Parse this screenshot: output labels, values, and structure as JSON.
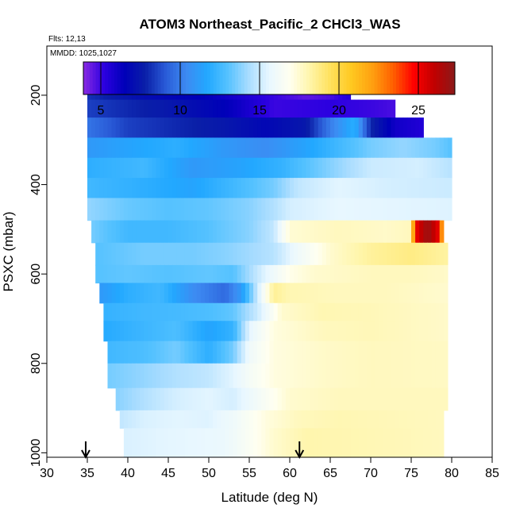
{
  "chart_data": {
    "type": "heatmap",
    "title": "ATOM3 Northeast_Pacific_2 CHCl3_WAS",
    "flights_label": "Flts: 12,13",
    "dates_label": "MMDD: 1025,1027",
    "xlabel": "Latitude (deg N)",
    "ylabel": "PSXC (mbar)",
    "xlim": [
      30,
      85
    ],
    "ylim": [
      1010,
      90
    ],
    "x_ticks": [
      "30",
      "35",
      "40",
      "45",
      "50",
      "55",
      "60",
      "65",
      "70",
      "75",
      "80",
      "85"
    ],
    "y_ticks": [
      "200",
      "400",
      "600",
      "800",
      "1000"
    ],
    "colorbar": {
      "range": [
        3.9,
        27.3
      ],
      "ticks": [
        "5",
        "10",
        "15",
        "20",
        "25"
      ],
      "colors": [
        "#8a2be2",
        "#2b00e0",
        "#0000b8",
        "#0a1fa8",
        "#2a5cd8",
        "#3d8bf2",
        "#22a8ff",
        "#55c2ff",
        "#a8dcff",
        "#e8f7ff",
        "#fffff0",
        "#fff5a8",
        "#ffe05a",
        "#ffc820",
        "#ffa010",
        "#ff6000",
        "#ff0000",
        "#c00000",
        "#8b1a1a"
      ]
    },
    "profile_arrows_lat": [
      34.8,
      61.2
    ],
    "grid": false,
    "bands": [
      {
        "p_top": 180,
        "p_bot": 210,
        "lat_min": 35,
        "lat_max": 67.5,
        "stops": [
          [
            35,
            8.2
          ],
          [
            42,
            7
          ],
          [
            50,
            6.4
          ],
          [
            57,
            5.2
          ],
          [
            62,
            4.5
          ],
          [
            65,
            4.8
          ],
          [
            67.5,
            5.5
          ]
        ]
      },
      {
        "p_top": 210,
        "p_bot": 250,
        "lat_min": 35,
        "lat_max": 73,
        "stops": [
          [
            35,
            8.5
          ],
          [
            45,
            7.5
          ],
          [
            52,
            6.5
          ],
          [
            58,
            5
          ],
          [
            65,
            5.2
          ],
          [
            70,
            5
          ],
          [
            73,
            4.8
          ]
        ]
      },
      {
        "p_top": 250,
        "p_bot": 295,
        "lat_min": 35,
        "lat_max": 76.5,
        "stops": [
          [
            35,
            9.8
          ],
          [
            40,
            8.5
          ],
          [
            46,
            8
          ],
          [
            52,
            7.5
          ],
          [
            57,
            6.8
          ],
          [
            62,
            7.5
          ],
          [
            65,
            10
          ],
          [
            68,
            12
          ],
          [
            70,
            8
          ],
          [
            73,
            6
          ],
          [
            76.5,
            5.5
          ]
        ]
      },
      {
        "p_top": 295,
        "p_bot": 340,
        "lat_min": 35,
        "lat_max": 80,
        "stops": [
          [
            35,
            11
          ],
          [
            40,
            11.5
          ],
          [
            46,
            12
          ],
          [
            52,
            11
          ],
          [
            57,
            10.5
          ],
          [
            62,
            11.5
          ],
          [
            66,
            12.5
          ],
          [
            70,
            13.5
          ],
          [
            74,
            14
          ],
          [
            78,
            13.5
          ],
          [
            80,
            13
          ]
        ]
      },
      {
        "p_top": 340,
        "p_bot": 385,
        "lat_min": 35,
        "lat_max": 80,
        "stops": [
          [
            35,
            12
          ],
          [
            42,
            12.5
          ],
          [
            48,
            11
          ],
          [
            54,
            11.5
          ],
          [
            59,
            12.2
          ],
          [
            62,
            13
          ],
          [
            66,
            14
          ],
          [
            70,
            15
          ],
          [
            76,
            15.2
          ],
          [
            80,
            14.6
          ]
        ]
      },
      {
        "p_top": 385,
        "p_bot": 430,
        "lat_min": 35,
        "lat_max": 80,
        "stops": [
          [
            35,
            12.5
          ],
          [
            42,
            12
          ],
          [
            48,
            11.5
          ],
          [
            53,
            12.5
          ],
          [
            58,
            13.5
          ],
          [
            61,
            14.8
          ],
          [
            66,
            15.5
          ],
          [
            72,
            15.2
          ],
          [
            80,
            15
          ]
        ]
      },
      {
        "p_top": 430,
        "p_bot": 480,
        "lat_min": 35,
        "lat_max": 80,
        "stops": [
          [
            35,
            14
          ],
          [
            40,
            13.3
          ],
          [
            45,
            13
          ],
          [
            50,
            13.2
          ],
          [
            55,
            13.8
          ],
          [
            58,
            14.5
          ],
          [
            60,
            15.2
          ],
          [
            66,
            15.6
          ],
          [
            74,
            15.5
          ],
          [
            80,
            15.4
          ]
        ]
      },
      {
        "p_top": 480,
        "p_bot": 530,
        "lat_min": 35.5,
        "lat_max": 79,
        "stops": [
          [
            35.5,
            13.5
          ],
          [
            40,
            12.5
          ],
          [
            45,
            12.5
          ],
          [
            50,
            13
          ],
          [
            55,
            13.8
          ],
          [
            58,
            14.8
          ],
          [
            60,
            17.4
          ],
          [
            66,
            17.8
          ],
          [
            72,
            17.6
          ],
          [
            74.8,
            17.8
          ],
          [
            75.6,
            25
          ],
          [
            77,
            27
          ],
          [
            78.5,
            25
          ],
          [
            79,
            20
          ]
        ]
      },
      {
        "p_top": 530,
        "p_bot": 580,
        "lat_min": 36,
        "lat_max": 79.5,
        "stops": [
          [
            36,
            13
          ],
          [
            42,
            13.5
          ],
          [
            48,
            13.5
          ],
          [
            52,
            13.8
          ],
          [
            55,
            14.2
          ],
          [
            58,
            14.6
          ],
          [
            61,
            16
          ],
          [
            65,
            17.5
          ],
          [
            70,
            18.4
          ],
          [
            75,
            18.8
          ],
          [
            79.5,
            18.3
          ]
        ]
      },
      {
        "p_top": 580,
        "p_bot": 620,
        "lat_min": 36,
        "lat_max": 79.5,
        "stops": [
          [
            36,
            13
          ],
          [
            40,
            13.2
          ],
          [
            45,
            13
          ],
          [
            50,
            13.2
          ],
          [
            53,
            13
          ],
          [
            57,
            15.5
          ],
          [
            60,
            17
          ],
          [
            63,
            17.5
          ],
          [
            70,
            17.8
          ],
          [
            75,
            17.8
          ],
          [
            79.5,
            17.6
          ]
        ]
      },
      {
        "p_top": 620,
        "p_bot": 665,
        "lat_min": 36.5,
        "lat_max": 79.5,
        "stops": [
          [
            36.5,
            11
          ],
          [
            40,
            12
          ],
          [
            44,
            12.5
          ],
          [
            48,
            10.5
          ],
          [
            52,
            9.5
          ],
          [
            54,
            11
          ],
          [
            56,
            15
          ],
          [
            58,
            18.5
          ],
          [
            60,
            18
          ],
          [
            66,
            17.8
          ],
          [
            72,
            17.8
          ],
          [
            79.5,
            17.5
          ]
        ]
      },
      {
        "p_top": 665,
        "p_bot": 705,
        "lat_min": 37,
        "lat_max": 79.5,
        "stops": [
          [
            37,
            12.2
          ],
          [
            42,
            12.5
          ],
          [
            46,
            12.6
          ],
          [
            50,
            12.8
          ],
          [
            53,
            13.2
          ],
          [
            56,
            15
          ],
          [
            59,
            17.5
          ],
          [
            64,
            18
          ],
          [
            70,
            17.9
          ],
          [
            79.5,
            17.6
          ]
        ]
      },
      {
        "p_top": 705,
        "p_bot": 750,
        "lat_min": 37,
        "lat_max": 79.5,
        "stops": [
          [
            37,
            11.8
          ],
          [
            42,
            12.4
          ],
          [
            46,
            12.8
          ],
          [
            50,
            11.5
          ],
          [
            53,
            12.2
          ],
          [
            55,
            15.5
          ],
          [
            58,
            17.2
          ],
          [
            64,
            17.8
          ],
          [
            70,
            17.9
          ],
          [
            79.5,
            17.6
          ]
        ]
      },
      {
        "p_top": 750,
        "p_bot": 800,
        "lat_min": 37.5,
        "lat_max": 79.5,
        "stops": [
          [
            37.5,
            12.5
          ],
          [
            42,
            12.8
          ],
          [
            46,
            13.5
          ],
          [
            50,
            12
          ],
          [
            53,
            13.5
          ],
          [
            55,
            16
          ],
          [
            58,
            17.2
          ],
          [
            64,
            17.6
          ],
          [
            70,
            17.8
          ],
          [
            79.5,
            17.7
          ]
        ]
      },
      {
        "p_top": 800,
        "p_bot": 855,
        "lat_min": 37.5,
        "lat_max": 79.5,
        "stops": [
          [
            37.5,
            13.5
          ],
          [
            42,
            14
          ],
          [
            46,
            14.5
          ],
          [
            50,
            14.8
          ],
          [
            53,
            15.5
          ],
          [
            55,
            16.3
          ],
          [
            58,
            17.2
          ],
          [
            64,
            17.6
          ],
          [
            70,
            17.8
          ],
          [
            79.5,
            17.7
          ]
        ]
      },
      {
        "p_top": 855,
        "p_bot": 905,
        "lat_min": 38.5,
        "lat_max": 79.5,
        "stops": [
          [
            38.5,
            13.8
          ],
          [
            42,
            14.5
          ],
          [
            46,
            15.2
          ],
          [
            50,
            15.5
          ],
          [
            53,
            15.2
          ],
          [
            56,
            16.2
          ],
          [
            60,
            17.5
          ],
          [
            66,
            17.8
          ],
          [
            72,
            17.8
          ],
          [
            79.5,
            17.8
          ]
        ]
      },
      {
        "p_top": 905,
        "p_bot": 945,
        "lat_min": 39,
        "lat_max": 79,
        "stops": [
          [
            39,
            14.8
          ],
          [
            42,
            15.3
          ],
          [
            46,
            15.5
          ],
          [
            50,
            15.4
          ],
          [
            53,
            16
          ],
          [
            57,
            17.2
          ],
          [
            61,
            17.8
          ],
          [
            66,
            18
          ],
          [
            72,
            17.9
          ],
          [
            79,
            17.8
          ]
        ]
      },
      {
        "p_top": 945,
        "p_bot": 1010,
        "lat_min": 39.5,
        "lat_max": 79,
        "stops": [
          [
            39.5,
            15.3
          ],
          [
            44,
            15.5
          ],
          [
            48,
            15.6
          ],
          [
            52,
            15.8
          ],
          [
            55,
            16.6
          ],
          [
            58,
            17.5
          ],
          [
            62,
            18.1
          ],
          [
            68,
            18
          ],
          [
            74,
            17.9
          ],
          [
            79,
            17.8
          ]
        ]
      }
    ]
  }
}
